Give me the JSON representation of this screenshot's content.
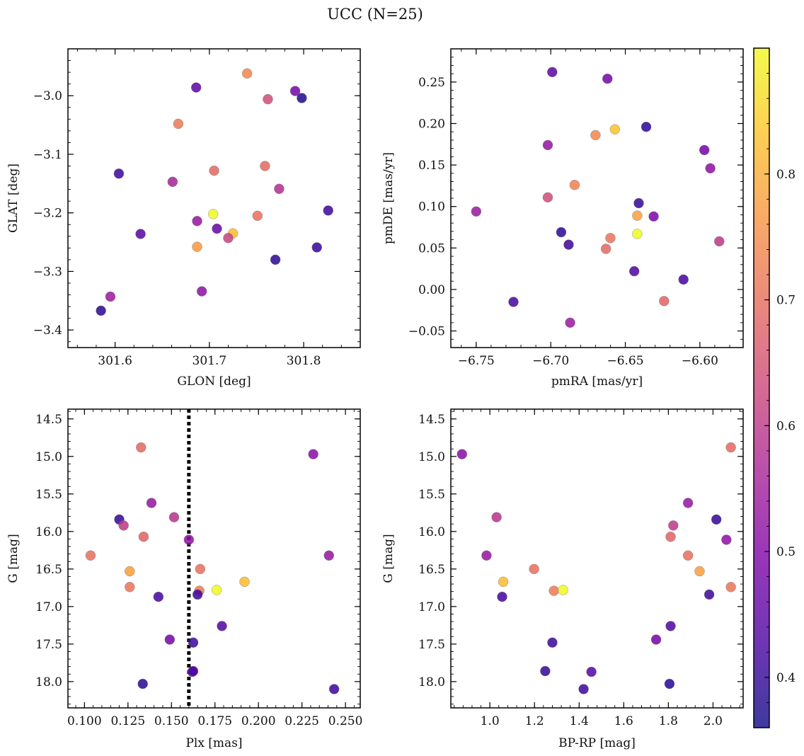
{
  "figure": {
    "title": "UCC (N=25)"
  },
  "colorbar": {
    "colormap": "plasma",
    "vmin": 0.36,
    "vmax": 0.9,
    "ticks": [
      0.4,
      0.5,
      0.6,
      0.7,
      0.8
    ]
  },
  "chart_data": [
    {
      "type": "scatter",
      "panel": "top-left",
      "xlabel": "GLON [deg]",
      "ylabel": "GLAT [deg]",
      "xlim": [
        301.55,
        301.86
      ],
      "ylim": [
        -3.43,
        -2.92
      ],
      "y_inverted": false,
      "xticks": [
        301.6,
        301.7,
        301.8
      ],
      "yticks": [
        -3.4,
        -3.3,
        -3.2,
        -3.1,
        -3.0
      ],
      "xtick_labels": [
        "301.6",
        "301.7",
        "301.8"
      ],
      "ytick_labels": [
        "−3.4",
        "−3.3",
        "−3.2",
        "−3.1",
        "−3.0"
      ],
      "points": [
        {
          "x": 301.74,
          "y": -2.962,
          "c": 0.74
        },
        {
          "x": 301.686,
          "y": -2.986,
          "c": 0.45
        },
        {
          "x": 301.762,
          "y": -3.006,
          "c": 0.64
        },
        {
          "x": 301.791,
          "y": -2.992,
          "c": 0.48
        },
        {
          "x": 301.798,
          "y": -3.004,
          "c": 0.38
        },
        {
          "x": 301.667,
          "y": -3.048,
          "c": 0.72
        },
        {
          "x": 301.604,
          "y": -3.133,
          "c": 0.41
        },
        {
          "x": 301.661,
          "y": -3.147,
          "c": 0.56
        },
        {
          "x": 301.705,
          "y": -3.128,
          "c": 0.69
        },
        {
          "x": 301.759,
          "y": -3.12,
          "c": 0.69
        },
        {
          "x": 301.774,
          "y": -3.159,
          "c": 0.58
        },
        {
          "x": 301.826,
          "y": -3.196,
          "c": 0.41
        },
        {
          "x": 301.704,
          "y": -3.202,
          "c": 0.9
        },
        {
          "x": 301.687,
          "y": -3.214,
          "c": 0.53
        },
        {
          "x": 301.751,
          "y": -3.205,
          "c": 0.7
        },
        {
          "x": 301.708,
          "y": -3.227,
          "c": 0.46
        },
        {
          "x": 301.627,
          "y": -3.236,
          "c": 0.44
        },
        {
          "x": 301.725,
          "y": -3.235,
          "c": 0.82
        },
        {
          "x": 301.72,
          "y": -3.243,
          "c": 0.62
        },
        {
          "x": 301.687,
          "y": -3.258,
          "c": 0.77
        },
        {
          "x": 301.814,
          "y": -3.259,
          "c": 0.4
        },
        {
          "x": 301.77,
          "y": -3.28,
          "c": 0.39
        },
        {
          "x": 301.692,
          "y": -3.334,
          "c": 0.52
        },
        {
          "x": 301.595,
          "y": -3.343,
          "c": 0.54
        },
        {
          "x": 301.585,
          "y": -3.367,
          "c": 0.39
        }
      ]
    },
    {
      "type": "scatter",
      "panel": "top-right",
      "xlabel": "pmRA [mas/yr]",
      "ylabel": "pmDE [mas/yr]",
      "xlim": [
        -6.767,
        -6.571
      ],
      "ylim": [
        -0.07,
        0.29
      ],
      "y_inverted": false,
      "xticks": [
        -6.75,
        -6.7,
        -6.65,
        -6.6
      ],
      "yticks": [
        -0.05,
        0.0,
        0.05,
        0.1,
        0.15,
        0.2,
        0.25
      ],
      "xtick_labels": [
        "−6.75",
        "−6.70",
        "−6.65",
        "−6.60"
      ],
      "ytick_labels": [
        "−0.05",
        "0.00",
        "0.05",
        "0.10",
        "0.15",
        "0.20",
        "0.25"
      ],
      "points": [
        {
          "x": -6.699,
          "y": 0.262,
          "c": 0.45
        },
        {
          "x": -6.662,
          "y": 0.254,
          "c": 0.48
        },
        {
          "x": -6.636,
          "y": 0.196,
          "c": 0.39
        },
        {
          "x": -6.657,
          "y": 0.193,
          "c": 0.83
        },
        {
          "x": -6.67,
          "y": 0.186,
          "c": 0.74
        },
        {
          "x": -6.702,
          "y": 0.174,
          "c": 0.53
        },
        {
          "x": -6.597,
          "y": 0.168,
          "c": 0.48
        },
        {
          "x": -6.593,
          "y": 0.146,
          "c": 0.52
        },
        {
          "x": -6.684,
          "y": 0.126,
          "c": 0.73
        },
        {
          "x": -6.702,
          "y": 0.111,
          "c": 0.64
        },
        {
          "x": -6.641,
          "y": 0.104,
          "c": 0.4
        },
        {
          "x": -6.75,
          "y": 0.094,
          "c": 0.54
        },
        {
          "x": -6.642,
          "y": 0.089,
          "c": 0.78
        },
        {
          "x": -6.631,
          "y": 0.088,
          "c": 0.49
        },
        {
          "x": -6.693,
          "y": 0.069,
          "c": 0.39
        },
        {
          "x": -6.642,
          "y": 0.067,
          "c": 0.9
        },
        {
          "x": -6.66,
          "y": 0.062,
          "c": 0.71
        },
        {
          "x": -6.587,
          "y": 0.058,
          "c": 0.6
        },
        {
          "x": -6.688,
          "y": 0.054,
          "c": 0.41
        },
        {
          "x": -6.663,
          "y": 0.049,
          "c": 0.69
        },
        {
          "x": -6.644,
          "y": 0.022,
          "c": 0.43
        },
        {
          "x": -6.611,
          "y": 0.012,
          "c": 0.42
        },
        {
          "x": -6.725,
          "y": -0.015,
          "c": 0.42
        },
        {
          "x": -6.624,
          "y": -0.014,
          "c": 0.68
        },
        {
          "x": -6.687,
          "y": -0.04,
          "c": 0.54
        }
      ]
    },
    {
      "type": "scatter",
      "panel": "bottom-left",
      "xlabel": "Plx [mas]",
      "ylabel": "G [mag]",
      "xlim": [
        0.0905,
        0.2585
      ],
      "ylim": [
        14.37,
        18.35
      ],
      "y_inverted": true,
      "xticks": [
        0.1,
        0.125,
        0.15,
        0.175,
        0.2,
        0.225,
        0.25
      ],
      "yticks": [
        14.5,
        15.0,
        15.5,
        16.0,
        16.5,
        17.0,
        17.5,
        18.0
      ],
      "xtick_labels": [
        "0.100",
        "0.125",
        "0.150",
        "0.175",
        "0.200",
        "0.225",
        "0.250"
      ],
      "ytick_labels": [
        "14.5",
        "15.0",
        "15.5",
        "16.0",
        "16.5",
        "17.0",
        "17.5",
        "18.0"
      ],
      "vline": {
        "x": 0.16,
        "style": "dotted"
      },
      "points": [
        {
          "x": 0.1325,
          "y": 14.88,
          "c": 0.69
        },
        {
          "x": 0.2315,
          "y": 14.97,
          "c": 0.51
        },
        {
          "x": 0.1385,
          "y": 15.62,
          "c": 0.53
        },
        {
          "x": 0.1515,
          "y": 15.81,
          "c": 0.59
        },
        {
          "x": 0.12,
          "y": 15.84,
          "c": 0.4
        },
        {
          "x": 0.1225,
          "y": 15.92,
          "c": 0.6
        },
        {
          "x": 0.134,
          "y": 16.07,
          "c": 0.68
        },
        {
          "x": 0.16,
          "y": 16.11,
          "c": 0.52
        },
        {
          "x": 0.1035,
          "y": 16.32,
          "c": 0.7
        },
        {
          "x": 0.2405,
          "y": 16.32,
          "c": 0.53
        },
        {
          "x": 0.1665,
          "y": 16.5,
          "c": 0.7
        },
        {
          "x": 0.126,
          "y": 16.53,
          "c": 0.78
        },
        {
          "x": 0.192,
          "y": 16.67,
          "c": 0.82
        },
        {
          "x": 0.126,
          "y": 16.74,
          "c": 0.71
        },
        {
          "x": 0.176,
          "y": 16.78,
          "c": 0.9
        },
        {
          "x": 0.166,
          "y": 16.79,
          "c": 0.72
        },
        {
          "x": 0.165,
          "y": 16.84,
          "c": 0.41
        },
        {
          "x": 0.1425,
          "y": 16.87,
          "c": 0.42
        },
        {
          "x": 0.179,
          "y": 17.26,
          "c": 0.43
        },
        {
          "x": 0.149,
          "y": 17.44,
          "c": 0.48
        },
        {
          "x": 0.1625,
          "y": 17.48,
          "c": 0.41
        },
        {
          "x": 0.162,
          "y": 17.87,
          "c": 0.4
        },
        {
          "x": 0.1625,
          "y": 17.86,
          "c": 0.44
        },
        {
          "x": 0.1335,
          "y": 18.03,
          "c": 0.39
        },
        {
          "x": 0.2435,
          "y": 18.1,
          "c": 0.41
        }
      ]
    },
    {
      "type": "scatter",
      "panel": "bottom-right",
      "xlabel": "BP-RP [mag]",
      "ylabel": "G [mag]",
      "xlim": [
        0.825,
        2.135
      ],
      "ylim": [
        14.37,
        18.35
      ],
      "y_inverted": true,
      "xticks": [
        1.0,
        1.2,
        1.4,
        1.6,
        1.8,
        2.0
      ],
      "yticks": [
        14.5,
        15.0,
        15.5,
        16.0,
        16.5,
        17.0,
        17.5,
        18.0
      ],
      "xtick_labels": [
        "1.0",
        "1.2",
        "1.4",
        "1.6",
        "1.8",
        "2.0"
      ],
      "ytick_labels": [
        "14.5",
        "15.0",
        "15.5",
        "16.0",
        "16.5",
        "17.0",
        "17.5",
        "18.0"
      ],
      "points": [
        {
          "x": 0.875,
          "y": 14.97,
          "c": 0.51
        },
        {
          "x": 2.08,
          "y": 14.88,
          "c": 0.69
        },
        {
          "x": 1.888,
          "y": 15.62,
          "c": 0.53
        },
        {
          "x": 1.03,
          "y": 15.81,
          "c": 0.59
        },
        {
          "x": 2.015,
          "y": 15.84,
          "c": 0.4
        },
        {
          "x": 1.822,
          "y": 15.92,
          "c": 0.6
        },
        {
          "x": 1.81,
          "y": 16.07,
          "c": 0.68
        },
        {
          "x": 2.06,
          "y": 16.11,
          "c": 0.52
        },
        {
          "x": 0.985,
          "y": 16.32,
          "c": 0.53
        },
        {
          "x": 1.888,
          "y": 16.32,
          "c": 0.7
        },
        {
          "x": 1.198,
          "y": 16.5,
          "c": 0.7
        },
        {
          "x": 1.94,
          "y": 16.53,
          "c": 0.78
        },
        {
          "x": 1.06,
          "y": 16.67,
          "c": 0.82
        },
        {
          "x": 2.08,
          "y": 16.74,
          "c": 0.71
        },
        {
          "x": 1.287,
          "y": 16.79,
          "c": 0.72
        },
        {
          "x": 1.328,
          "y": 16.78,
          "c": 0.9
        },
        {
          "x": 1.055,
          "y": 16.87,
          "c": 0.42
        },
        {
          "x": 1.983,
          "y": 16.84,
          "c": 0.41
        },
        {
          "x": 1.81,
          "y": 17.26,
          "c": 0.43
        },
        {
          "x": 1.745,
          "y": 17.44,
          "c": 0.48
        },
        {
          "x": 1.28,
          "y": 17.48,
          "c": 0.41
        },
        {
          "x": 1.248,
          "y": 17.86,
          "c": 0.4
        },
        {
          "x": 1.455,
          "y": 17.87,
          "c": 0.44
        },
        {
          "x": 1.42,
          "y": 18.1,
          "c": 0.41
        },
        {
          "x": 1.805,
          "y": 18.03,
          "c": 0.39
        }
      ]
    }
  ]
}
